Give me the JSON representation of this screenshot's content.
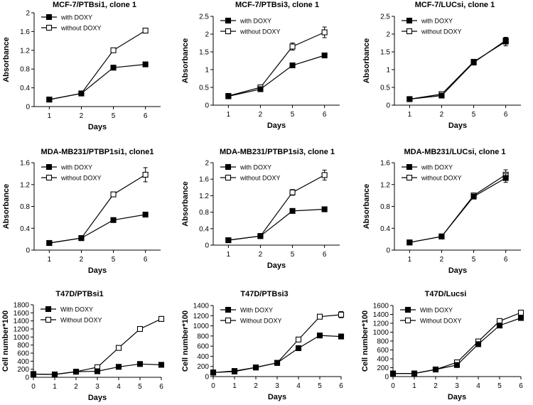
{
  "figure": {
    "layout": "3x3 panel grid"
  },
  "chart_data": [
    {
      "type": "line",
      "title": "MCF-7/PTBsi1, clone 1",
      "xlabel": "Days",
      "ylabel": "Absorbance",
      "categories": [
        "1",
        "2",
        "5",
        "6"
      ],
      "ylim": [
        0,
        2
      ],
      "yticks": [
        "0",
        "0.4",
        "0.8",
        "1.2",
        "1.6",
        "2"
      ],
      "series": [
        {
          "name": "with DOXY",
          "marker": "filled",
          "values": [
            0.15,
            0.28,
            0.83,
            0.9
          ],
          "errors": [
            0.01,
            0.01,
            0.02,
            0.02
          ]
        },
        {
          "name": "without DOXY",
          "marker": "open",
          "values": [
            0.15,
            0.28,
            1.2,
            1.62
          ],
          "errors": [
            0.01,
            0.01,
            0.02,
            0.04
          ]
        }
      ]
    },
    {
      "type": "line",
      "title": "MCF-7/PTBsi3, clone 1",
      "xlabel": "Days",
      "ylabel": "Absorbance",
      "categories": [
        "1",
        "2",
        "5",
        "6"
      ],
      "ylim": [
        0,
        2.5
      ],
      "yticks": [
        "0",
        "0.5",
        "1",
        "1.5",
        "2",
        "2.5"
      ],
      "series": [
        {
          "name": "with DOXY",
          "marker": "filled",
          "values": [
            0.25,
            0.45,
            1.12,
            1.4
          ],
          "errors": [
            0.01,
            0.01,
            0.02,
            0.05
          ]
        },
        {
          "name": "without DOXY",
          "marker": "open",
          "values": [
            0.26,
            0.5,
            1.65,
            2.05
          ],
          "errors": [
            0.01,
            0.02,
            0.1,
            0.15
          ]
        }
      ]
    },
    {
      "type": "line",
      "title": "MCF-7/LUCsi, clone 1",
      "xlabel": "Days",
      "ylabel": "Absorbance",
      "categories": [
        "1",
        "2",
        "5",
        "6"
      ],
      "ylim": [
        0,
        2.5
      ],
      "yticks": [
        "0",
        "0.5",
        "1",
        "1.5",
        "2",
        "2.5"
      ],
      "series": [
        {
          "name": "with DOXY",
          "marker": "filled",
          "values": [
            0.17,
            0.27,
            1.2,
            1.82
          ],
          "errors": [
            0.01,
            0.01,
            0.03,
            0.08
          ]
        },
        {
          "name": "without DOXY",
          "marker": "open",
          "values": [
            0.17,
            0.31,
            1.22,
            1.79
          ],
          "errors": [
            0.01,
            0.02,
            0.03,
            0.12
          ]
        }
      ]
    },
    {
      "type": "line",
      "title": "MDA-MB231/PTBP1si1, clone1",
      "xlabel": "Days",
      "ylabel": "Absorbance",
      "categories": [
        "1",
        "2",
        "5",
        "6"
      ],
      "ylim": [
        0,
        1.6
      ],
      "yticks": [
        "0",
        "0.4",
        "0.8",
        "1.2",
        "1.6"
      ],
      "series": [
        {
          "name": "with DOXY",
          "marker": "filled",
          "values": [
            0.13,
            0.22,
            0.55,
            0.65
          ],
          "errors": [
            0.01,
            0.01,
            0.01,
            0.02
          ]
        },
        {
          "name": "without DOXY",
          "marker": "open",
          "values": [
            0.13,
            0.22,
            1.02,
            1.38
          ],
          "errors": [
            0.01,
            0.01,
            0.03,
            0.13
          ]
        }
      ]
    },
    {
      "type": "line",
      "title": "MDA-MB231/PTBP1si3, clone 1",
      "xlabel": "Days",
      "ylabel": "Absorbance",
      "categories": [
        "1",
        "2",
        "5",
        "6"
      ],
      "ylim": [
        0,
        2
      ],
      "yticks": [
        "0",
        "0.4",
        "0.8",
        "1.2",
        "1.6",
        "2"
      ],
      "series": [
        {
          "name": "with DOXY",
          "marker": "filled",
          "values": [
            0.12,
            0.22,
            0.83,
            0.87
          ],
          "errors": [
            0.01,
            0.01,
            0.02,
            0.02
          ]
        },
        {
          "name": "without DOXY",
          "marker": "open",
          "values": [
            0.12,
            0.22,
            1.28,
            1.7
          ],
          "errors": [
            0.01,
            0.02,
            0.07,
            0.12
          ]
        }
      ]
    },
    {
      "type": "line",
      "title": "MDA-MB231/LUCsi, clone 1",
      "xlabel": "Days",
      "ylabel": "Absorbance",
      "categories": [
        "1",
        "2",
        "5",
        "6"
      ],
      "ylim": [
        0,
        1.6
      ],
      "yticks": [
        "0",
        "0.4",
        "0.8",
        "1.2",
        "1.6"
      ],
      "series": [
        {
          "name": "with DOXY",
          "marker": "filled",
          "values": [
            0.14,
            0.25,
            0.98,
            1.32
          ],
          "errors": [
            0.01,
            0.01,
            0.02,
            0.08
          ]
        },
        {
          "name": "without DOXY",
          "marker": "open",
          "values": [
            0.14,
            0.25,
            1.0,
            1.38
          ],
          "errors": [
            0.01,
            0.01,
            0.02,
            0.09
          ]
        }
      ]
    },
    {
      "type": "line",
      "title": "T47D/PTBsi1",
      "xlabel": "Days",
      "ylabel": "Cell number*100",
      "categories": [
        "0",
        "1",
        "2",
        "3",
        "4",
        "5",
        "6"
      ],
      "ylim": [
        0,
        1800
      ],
      "yticks": [
        "0",
        "200",
        "400",
        "600",
        "800",
        "1000",
        "1200",
        "1400",
        "1600",
        "1800"
      ],
      "series": [
        {
          "name": "With DOXY",
          "marker": "filled",
          "values": [
            80,
            70,
            140,
            150,
            260,
            330,
            310
          ],
          "errors": [
            5,
            5,
            5,
            10,
            10,
            10,
            10
          ]
        },
        {
          "name": "Without DOXY",
          "marker": "open",
          "values": [
            80,
            70,
            140,
            250,
            730,
            1200,
            1450
          ],
          "errors": [
            5,
            5,
            5,
            10,
            20,
            30,
            60
          ]
        }
      ]
    },
    {
      "type": "line",
      "title": "T47D/PTBsi3",
      "xlabel": "Days",
      "ylabel": "Cell number*100",
      "categories": [
        "0",
        "1",
        "2",
        "3",
        "4",
        "5",
        "6"
      ],
      "ylim": [
        0,
        1400
      ],
      "yticks": [
        "0",
        "200",
        "400",
        "600",
        "800",
        "1000",
        "1200",
        "1400"
      ],
      "series": [
        {
          "name": "With DOXY",
          "marker": "filled",
          "values": [
            80,
            100,
            180,
            270,
            560,
            810,
            790
          ],
          "errors": [
            5,
            5,
            10,
            10,
            15,
            20,
            20
          ]
        },
        {
          "name": "Without DOXY",
          "marker": "open",
          "values": [
            80,
            110,
            180,
            270,
            730,
            1180,
            1220
          ],
          "errors": [
            5,
            5,
            10,
            10,
            20,
            30,
            60
          ]
        }
      ]
    },
    {
      "type": "line",
      "title": "T47D/Lucsi",
      "xlabel": "Days",
      "ylabel": "Cell number*100",
      "categories": [
        "0",
        "1",
        "2",
        "3",
        "4",
        "5",
        "6"
      ],
      "ylim": [
        0,
        1600
      ],
      "yticks": [
        "0",
        "200",
        "400",
        "600",
        "800",
        "1000",
        "1200",
        "1400",
        "1600"
      ],
      "series": [
        {
          "name": "With DOXY",
          "marker": "filled",
          "values": [
            70,
            70,
            160,
            260,
            730,
            1150,
            1320
          ],
          "errors": [
            5,
            5,
            5,
            10,
            15,
            20,
            30
          ]
        },
        {
          "name": "Without DOXY",
          "marker": "open",
          "values": [
            70,
            70,
            160,
            320,
            790,
            1250,
            1440
          ],
          "errors": [
            5,
            5,
            5,
            10,
            20,
            20,
            30
          ]
        }
      ]
    }
  ]
}
